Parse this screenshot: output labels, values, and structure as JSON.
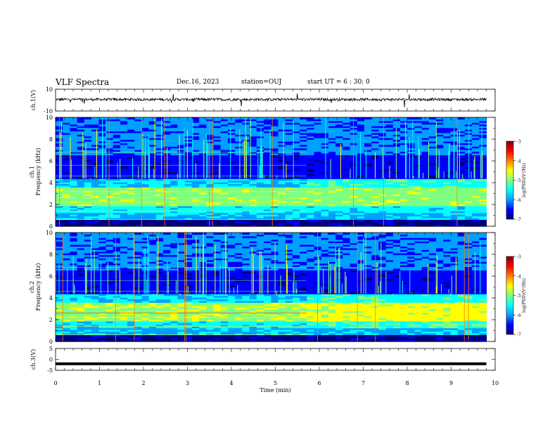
{
  "header": {
    "title": "VLF Spectra",
    "date": "Dec.16, 2023",
    "station": "station=OUJ",
    "start": "start UT = 6 : 30: 0"
  },
  "colors": {
    "scale": [
      "#00007f",
      "#0000ff",
      "#00a0ff",
      "#00ffff",
      "#7fff7f",
      "#ffff00",
      "#ff7f00",
      "#ff0000",
      "#7f0000"
    ]
  },
  "chart_data": [
    {
      "type": "line",
      "panel": "ch1",
      "ylabel": "ch.1(V)",
      "ylim": [
        -10,
        10
      ],
      "y_ticks": [
        "10",
        "-10"
      ],
      "x": [
        0,
        1,
        2,
        3,
        4,
        5,
        6,
        7,
        8,
        9,
        9.8
      ],
      "values": [
        0,
        0,
        0,
        0,
        0,
        0,
        0,
        0,
        0,
        0,
        0
      ]
    },
    {
      "type": "heatmap",
      "panel": "ch2-spectrogram-1",
      "ylabel": "ch.1\nFrequency (kHz)",
      "ylabel_lines": [
        "ch.1",
        "Frequency (kHz)"
      ],
      "ylim": [
        0,
        10
      ],
      "y_ticks": [
        "0",
        "2",
        "4",
        "6",
        "8",
        "10"
      ],
      "xlim": [
        0,
        10
      ],
      "colorbar": {
        "label": "log(PSD)(V²/Hz)",
        "range": [
          -7,
          -3
        ],
        "ticks": [
          "-3",
          "-4",
          "-5",
          "-6",
          "-7"
        ]
      }
    },
    {
      "type": "heatmap",
      "panel": "ch2-spectrogram-2",
      "ylabel": "ch.2\nFrequency (kHz)",
      "ylabel_lines": [
        "ch.2",
        "Frequency (kHz)"
      ],
      "ylim": [
        0,
        10
      ],
      "y_ticks": [
        "0",
        "2",
        "4",
        "6",
        "8",
        "10"
      ],
      "xlim": [
        0,
        10
      ],
      "colorbar": {
        "label": "log(PSD)(V²/Hz)",
        "range": [
          -7,
          -3
        ],
        "ticks": [
          "-3",
          "-4",
          "-5",
          "-6",
          "-7"
        ]
      }
    },
    {
      "type": "line",
      "panel": "ch3",
      "ylabel": "ch.3(V)",
      "ylim": [
        -5,
        5
      ],
      "y_ticks": [
        "5",
        "0",
        "-5"
      ],
      "x": [
        0,
        9.8
      ],
      "values": [
        -2,
        -2
      ]
    }
  ],
  "xaxis": {
    "label": "Time (min)",
    "range": [
      0,
      10
    ],
    "ticks": [
      "0",
      "1",
      "2",
      "3",
      "4",
      "5",
      "6",
      "7",
      "8",
      "9",
      "10"
    ]
  }
}
